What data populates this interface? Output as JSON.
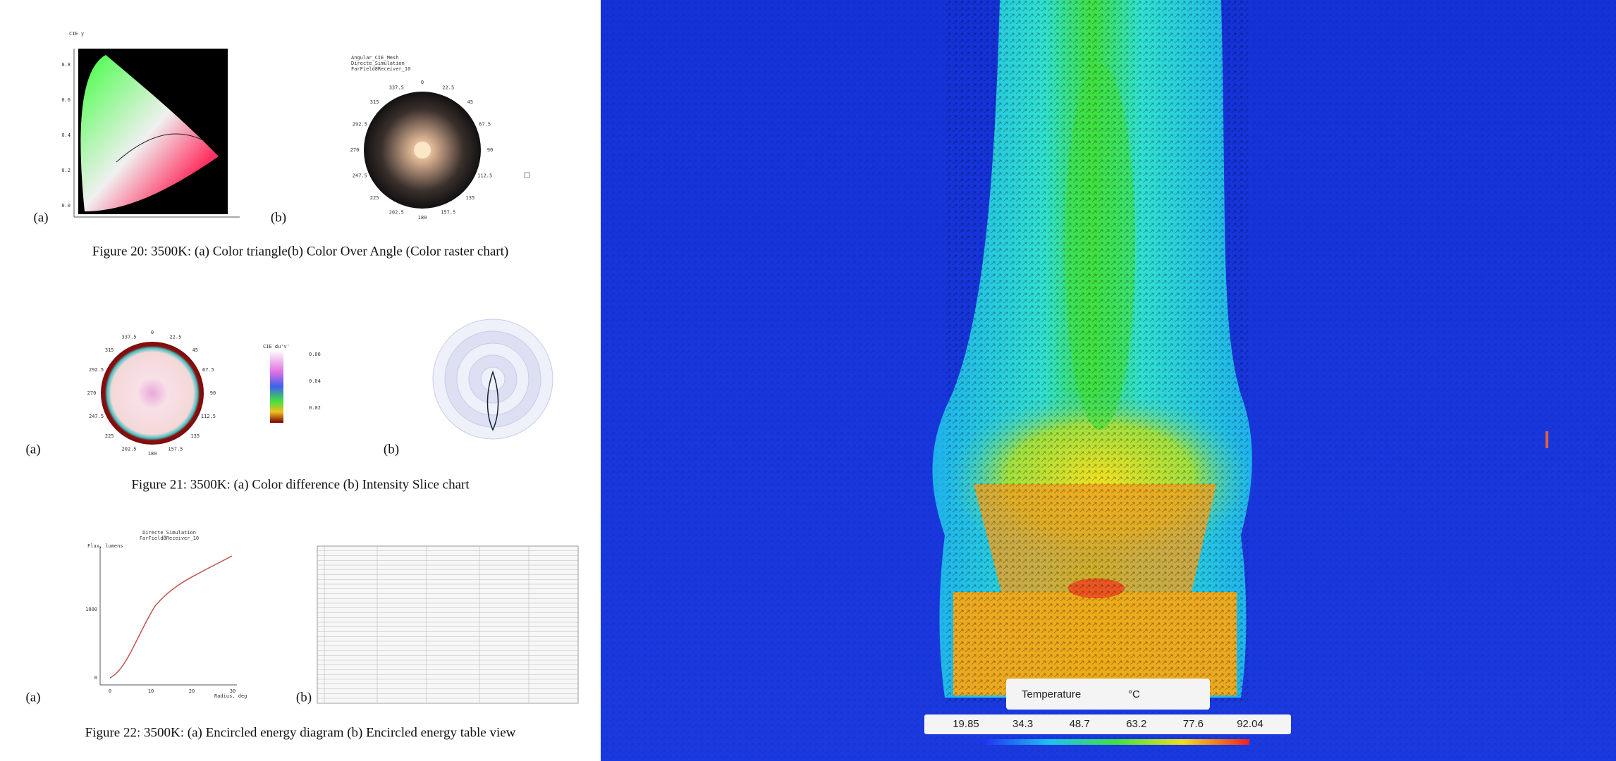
{
  "figures": [
    {
      "caption": "Figure 20: 3500K: (a) Color triangle(b) Color Over Angle (Color raster chart)",
      "labels": [
        "(a)",
        "(b)"
      ],
      "axis_ticks": [
        "0.8",
        "0.6",
        "0.4",
        "0.2",
        "0.0"
      ],
      "axis_title": "CIE y",
      "panel_title": [
        "Angular_CIE_Mesh",
        "Directe_Simulation",
        "FarField8Receiver_10"
      ],
      "angles": [
        "0",
        "22.5",
        "45",
        "67.5",
        "90",
        "112.5",
        "135",
        "157.5",
        "180",
        "202.5",
        "225",
        "247.5",
        "270",
        "292.5",
        "315",
        "337.5"
      ]
    },
    {
      "caption": "Figure 21: 3500K: (a) Color difference (b) Intensity Slice chart",
      "labels": [
        "(a)",
        "(b)"
      ],
      "colorbar_title": "CIE du'v'",
      "colorbar_ticks": [
        "0.06",
        "0.04",
        "0.02"
      ]
    },
    {
      "caption": "Figure 22: 3500K: (a) Encircled energy diagram (b) Encircled energy table view",
      "labels": [
        "(a)",
        "(b)"
      ],
      "panel_title": [
        "Directe_Simulation",
        "FarField8Receiver_10"
      ],
      "y_title": "Flux, lumens",
      "x_title": "Radius, deg",
      "y_ticks": [
        "1000",
        "0"
      ],
      "x_ticks": [
        "0",
        "10",
        "20",
        "30"
      ]
    }
  ],
  "legend": {
    "title": "Temperature",
    "unit": "°C",
    "ticks": [
      19.85,
      34.3,
      48.7,
      63.2,
      77.6,
      92.04
    ]
  }
}
